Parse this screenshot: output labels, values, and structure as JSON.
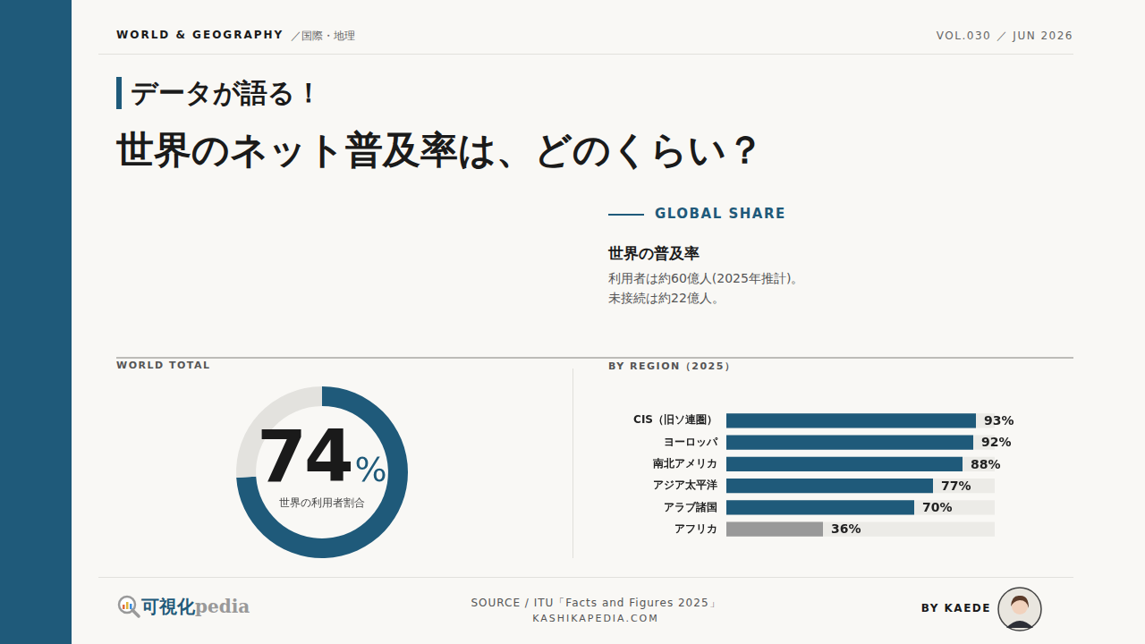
{
  "header": {
    "section": "WORLD & GEOGRAPHY",
    "section_ja": "／国際・地理",
    "issue": "VOL.030 ／ JUN 2026"
  },
  "kicker": "データが語る！",
  "title": "世界のネット普及率は、どのくらい？",
  "summary": {
    "label": "GLOBAL SHARE",
    "heading": "世界の普及率",
    "lines": [
      "利用者は約60億人(2025年推計)。",
      "未接続は約22億人。"
    ]
  },
  "chart_data": [
    {
      "type": "doughnut",
      "title": "WORLD TOTAL",
      "categories": [
        "世界の利用者割合",
        null
      ],
      "values": [
        74,
        26
      ],
      "value_labels": [
        "74%",
        null
      ],
      "data_labels": true,
      "colors": [
        "#1f5a7a",
        "#e3e2de"
      ]
    },
    {
      "type": "bar",
      "title": "BY REGION（2025）",
      "orientation": "horizontal",
      "categories": [
        "CIS（旧ソ連圏）",
        "ヨーロッパ",
        "南北アメリカ",
        "アジア太平洋",
        "アラブ諸国",
        "アフリカ"
      ],
      "values": [
        93,
        92,
        88,
        77,
        70,
        36
      ],
      "value_labels": [
        "93%",
        "92%",
        "88%",
        "77%",
        "70%",
        "36%"
      ],
      "data_labels": true,
      "colors": [
        "#1f5a7a",
        "#1f5a7a",
        "#1f5a7a",
        "#1f5a7a",
        "#1f5a7a",
        "#999999"
      ],
      "xlim": [
        0,
        100
      ],
      "grid": false,
      "tick_labels": "y"
    }
  ],
  "footer": {
    "logo_main": "可視化",
    "logo_sub": "pedia",
    "source": "SOURCE / ITU「Facts and Figures 2025」",
    "site": "KASHIKAPEDIA.COM",
    "byline": "BY KAEDE"
  }
}
